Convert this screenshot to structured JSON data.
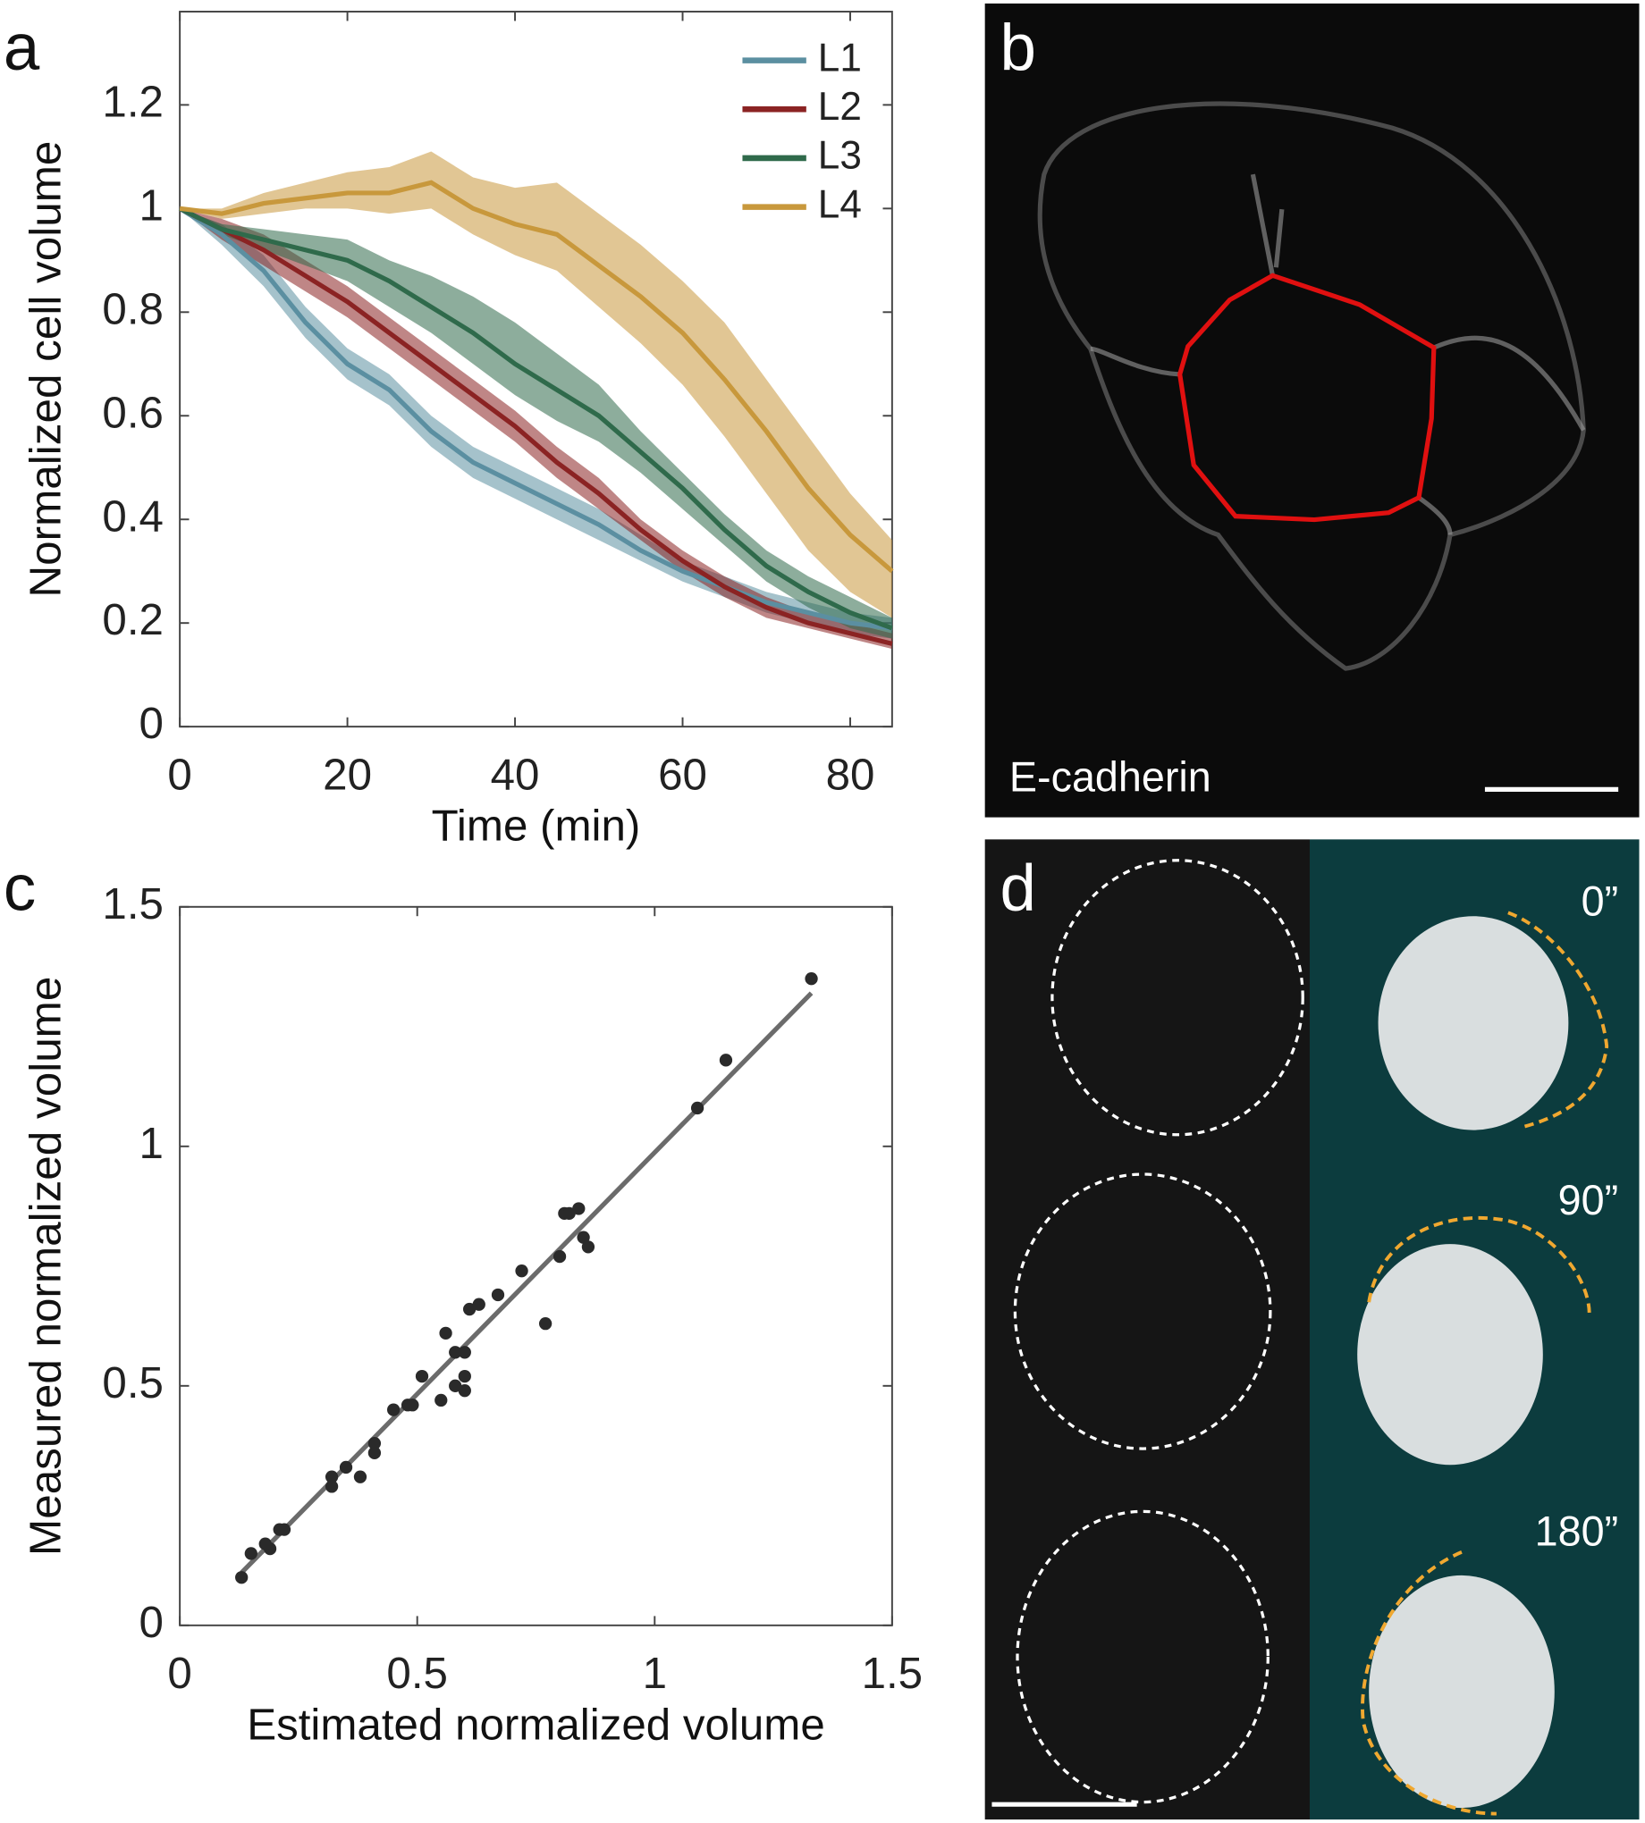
{
  "chart_data": [
    {
      "type": "line",
      "xlabel": "Time (min)",
      "ylabel": "Normalized cell volume",
      "x": [
        0,
        5,
        10,
        15,
        20,
        25,
        30,
        35,
        40,
        45,
        50,
        55,
        60,
        65,
        70,
        75,
        80,
        85
      ],
      "xlim": [
        0,
        85
      ],
      "xticks": [
        0,
        20,
        40,
        60,
        80
      ],
      "ylim": [
        0,
        1.38
      ],
      "yticks": [
        0,
        0.2,
        0.4,
        0.6,
        0.8,
        1,
        1.2
      ],
      "legend": "upper right",
      "series": [
        {
          "name": "L1",
          "color": "#5b8fa1",
          "values": [
            1,
            0.95,
            0.88,
            0.78,
            0.7,
            0.65,
            0.57,
            0.51,
            0.47,
            0.43,
            0.39,
            0.34,
            0.3,
            0.27,
            0.24,
            0.22,
            0.2,
            0.19
          ],
          "lower": [
            1,
            0.93,
            0.85,
            0.75,
            0.67,
            0.62,
            0.54,
            0.48,
            0.44,
            0.4,
            0.36,
            0.32,
            0.28,
            0.25,
            0.22,
            0.2,
            0.18,
            0.17
          ],
          "upper": [
            1,
            0.97,
            0.91,
            0.81,
            0.73,
            0.68,
            0.6,
            0.54,
            0.5,
            0.46,
            0.42,
            0.37,
            0.32,
            0.29,
            0.26,
            0.24,
            0.22,
            0.21
          ]
        },
        {
          "name": "L2",
          "color": "#8b2323",
          "values": [
            1,
            0.96,
            0.92,
            0.87,
            0.82,
            0.76,
            0.7,
            0.64,
            0.58,
            0.51,
            0.45,
            0.38,
            0.32,
            0.27,
            0.23,
            0.2,
            0.18,
            0.16
          ],
          "lower": [
            1,
            0.94,
            0.89,
            0.84,
            0.79,
            0.73,
            0.67,
            0.61,
            0.55,
            0.48,
            0.42,
            0.36,
            0.3,
            0.25,
            0.21,
            0.19,
            0.17,
            0.15
          ],
          "upper": [
            1,
            0.98,
            0.95,
            0.9,
            0.85,
            0.79,
            0.73,
            0.67,
            0.61,
            0.54,
            0.48,
            0.4,
            0.34,
            0.29,
            0.25,
            0.22,
            0.2,
            0.18
          ]
        },
        {
          "name": "L3",
          "color": "#2f6a4b",
          "values": [
            1,
            0.96,
            0.94,
            0.92,
            0.9,
            0.86,
            0.81,
            0.76,
            0.7,
            0.65,
            0.6,
            0.53,
            0.46,
            0.38,
            0.31,
            0.26,
            0.22,
            0.19
          ],
          "lower": [
            1,
            0.95,
            0.92,
            0.89,
            0.86,
            0.81,
            0.76,
            0.7,
            0.64,
            0.59,
            0.55,
            0.49,
            0.42,
            0.35,
            0.28,
            0.23,
            0.19,
            0.17
          ],
          "upper": [
            1,
            0.97,
            0.96,
            0.95,
            0.94,
            0.9,
            0.87,
            0.83,
            0.78,
            0.72,
            0.66,
            0.57,
            0.49,
            0.41,
            0.34,
            0.29,
            0.25,
            0.21
          ]
        },
        {
          "name": "L4",
          "color": "#c8983c",
          "values": [
            1,
            0.99,
            1.01,
            1.02,
            1.03,
            1.03,
            1.05,
            1,
            0.97,
            0.95,
            0.89,
            0.83,
            0.76,
            0.67,
            0.57,
            0.46,
            0.37,
            0.3
          ],
          "lower": [
            1,
            0.98,
            0.99,
            1,
            1,
            0.99,
            1,
            0.95,
            0.91,
            0.88,
            0.81,
            0.74,
            0.66,
            0.56,
            0.45,
            0.34,
            0.26,
            0.21
          ],
          "upper": [
            1,
            1,
            1.03,
            1.05,
            1.07,
            1.08,
            1.11,
            1.06,
            1.04,
            1.05,
            0.99,
            0.93,
            0.86,
            0.78,
            0.67,
            0.56,
            0.45,
            0.36
          ]
        }
      ]
    },
    {
      "type": "scatter",
      "xlabel": "Estimated normalized volume",
      "ylabel": "Measured normalized volume",
      "xlim": [
        0,
        1.5
      ],
      "xticks": [
        0,
        0.5,
        1,
        1.5
      ],
      "ylim": [
        0,
        1.5
      ],
      "yticks": [
        0,
        0.5,
        1,
        1.5
      ],
      "points": {
        "color": "#2a2a2a",
        "x": [
          0.13,
          0.15,
          0.19,
          0.18,
          0.21,
          0.22,
          0.32,
          0.32,
          0.35,
          0.38,
          0.41,
          0.41,
          0.45,
          0.48,
          0.49,
          0.51,
          0.55,
          0.56,
          0.58,
          0.58,
          0.6,
          0.6,
          0.6,
          0.61,
          0.63,
          0.67,
          0.72,
          0.77,
          0.8,
          0.81,
          0.82,
          0.84,
          0.85,
          0.86,
          1.09,
          1.15,
          1.33
        ],
        "y": [
          0.1,
          0.15,
          0.16,
          0.17,
          0.2,
          0.2,
          0.29,
          0.31,
          0.33,
          0.31,
          0.36,
          0.38,
          0.45,
          0.46,
          0.46,
          0.52,
          0.47,
          0.61,
          0.57,
          0.5,
          0.49,
          0.52,
          0.57,
          0.66,
          0.67,
          0.69,
          0.74,
          0.63,
          0.77,
          0.86,
          0.86,
          0.87,
          0.81,
          0.79,
          1.08,
          1.18,
          1.35
        ]
      },
      "fit_line": {
        "color": "#6b6b6b",
        "x": [
          0.13,
          1.33
        ],
        "y": [
          0.11,
          1.32
        ]
      }
    }
  ],
  "panels": {
    "a": "a",
    "b": "b",
    "c": "c",
    "d": "d",
    "b_stain": "E-cadherin",
    "d_times": [
      "0”",
      "90”",
      "180”"
    ]
  }
}
